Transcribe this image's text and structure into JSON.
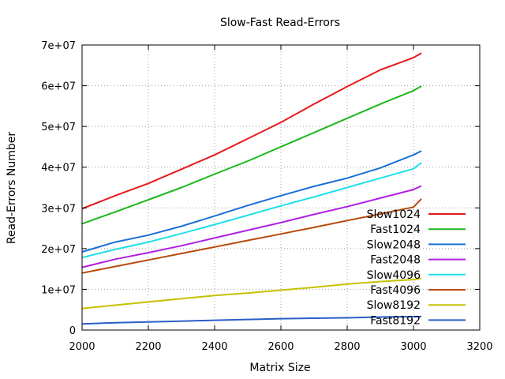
{
  "chart_data": {
    "type": "line",
    "title": "Slow-Fast Read-Errors",
    "xlabel": "Matrix Size",
    "ylabel": "Read-Errors Number",
    "xlim": [
      2000,
      3200
    ],
    "ylim": [
      0,
      70000000
    ],
    "x_ticks": [
      2000,
      2200,
      2400,
      2600,
      2800,
      3000,
      3200
    ],
    "x_tick_labels": [
      "2000",
      "2200",
      "2400",
      "2600",
      "2800",
      "3000",
      "3200"
    ],
    "y_ticks": [
      0,
      10000000,
      20000000,
      30000000,
      40000000,
      50000000,
      60000000,
      70000000
    ],
    "y_tick_labels": [
      "0",
      "1e+07",
      "2e+07",
      "3e+07",
      "4e+07",
      "5e+07",
      "6e+07",
      "7e+07"
    ],
    "grid": true,
    "legend_position": "bottom-right",
    "x": [
      2000,
      2100,
      2200,
      2300,
      2400,
      2500,
      2600,
      2700,
      2800,
      2900,
      3000,
      3024
    ],
    "series": [
      {
        "name": "Slow1024",
        "color": "#e41a1c",
        "values": [
          29800000,
          33000000,
          36000000,
          39500000,
          43000000,
          47000000,
          51000000,
          55500000,
          59800000,
          63900000,
          66900000,
          68000000
        ]
      },
      {
        "name": "Fast1024",
        "color": "#1db81d",
        "values": [
          26100000,
          29000000,
          32000000,
          35000000,
          38300000,
          41500000,
          45000000,
          48500000,
          52000000,
          55500000,
          58800000,
          59900000
        ]
      },
      {
        "name": "Slow2048",
        "color": "#1a6fd6",
        "values": [
          19200000,
          21600000,
          23300000,
          25500000,
          28000000,
          30600000,
          33000000,
          35300000,
          37300000,
          39800000,
          43000000,
          44000000
        ]
      },
      {
        "name": "Fast2048",
        "color": "#b020e0",
        "values": [
          15400000,
          17400000,
          19000000,
          20700000,
          22600000,
          24500000,
          26400000,
          28400000,
          30300000,
          32400000,
          34500000,
          35400000
        ]
      },
      {
        "name": "Slow4096",
        "color": "#1fe0e8",
        "values": [
          17800000,
          19800000,
          21600000,
          23700000,
          25900000,
          28200000,
          30500000,
          32700000,
          35000000,
          37300000,
          39600000,
          41100000
        ]
      },
      {
        "name": "Fast4096",
        "color": "#b84a0a",
        "values": [
          14000000,
          15600000,
          17200000,
          18800000,
          20400000,
          22000000,
          23600000,
          25200000,
          26900000,
          28500000,
          30200000,
          32200000
        ]
      },
      {
        "name": "Slow8192",
        "color": "#c8c000",
        "values": [
          5300000,
          6100000,
          6900000,
          7700000,
          8500000,
          9100000,
          9800000,
          10500000,
          11300000,
          11900000,
          12400000,
          12700000
        ]
      },
      {
        "name": "Fast8192",
        "color": "#2a5fc8",
        "values": [
          1500000,
          1800000,
          2000000,
          2200000,
          2400000,
          2600000,
          2800000,
          2900000,
          3000000,
          3200000,
          3300000,
          3300000
        ]
      }
    ]
  }
}
